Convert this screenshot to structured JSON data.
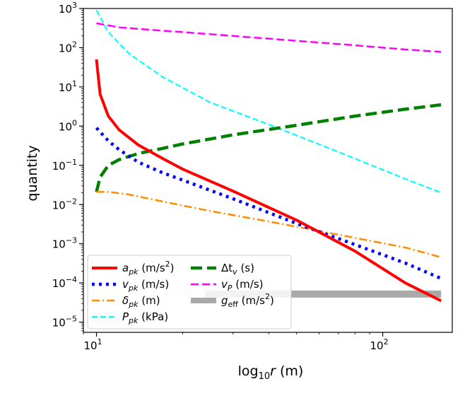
{
  "chart_data": {
    "type": "line",
    "title": "",
    "xlabel": "log10r (m)",
    "ylabel": "quantity",
    "xscale": "log",
    "yscale": "log",
    "xlim": [
      9.0,
      175
    ],
    "ylim": [
      5.5e-06,
      1000
    ],
    "grid": false,
    "legend_position": "lower-left",
    "x_ticks": [
      {
        "value": 10,
        "base": "10",
        "exp": "1"
      },
      {
        "value": 100,
        "base": "10",
        "exp": "2"
      }
    ],
    "y_ticks": [
      {
        "value": 1e-05,
        "base": "10",
        "exp": "−5"
      },
      {
        "value": 0.0001,
        "base": "10",
        "exp": "−4"
      },
      {
        "value": 0.001,
        "base": "10",
        "exp": "−3"
      },
      {
        "value": 0.01,
        "base": "10",
        "exp": "−2"
      },
      {
        "value": 0.1,
        "base": "10",
        "exp": "−1"
      },
      {
        "value": 1,
        "base": "10",
        "exp": "0"
      },
      {
        "value": 10,
        "base": "10",
        "exp": "1"
      },
      {
        "value": 100,
        "base": "10",
        "exp": "2"
      },
      {
        "value": 1000,
        "base": "10",
        "exp": "3"
      }
    ],
    "series": [
      {
        "id": "apk",
        "name": "a_pk (m/s²)",
        "color": "#ff0000",
        "style": "solid",
        "x": [
          10,
          10.3,
          11,
          12,
          14,
          17,
          20,
          30,
          50,
          80,
          120,
          160
        ],
        "y": [
          50,
          6.5,
          1.8,
          0.8,
          0.33,
          0.15,
          0.08,
          0.022,
          0.004,
          0.00065,
          0.0001,
          3.5e-05
        ]
      },
      {
        "id": "vpk",
        "name": "v_pk (m/s)",
        "color": "#0000ff",
        "style": "dotted",
        "x": [
          10,
          11,
          12,
          14,
          17,
          20,
          30,
          50,
          80,
          120,
          160
        ],
        "y": [
          0.9,
          0.42,
          0.25,
          0.12,
          0.065,
          0.042,
          0.014,
          0.0033,
          0.00095,
          0.00032,
          0.00013
        ]
      },
      {
        "id": "dpk",
        "name": "δ_pk (m)",
        "color": "#ff8c00",
        "style": "dashdot",
        "x": [
          10,
          11,
          13,
          17,
          25,
          40,
          70,
          120,
          160
        ],
        "y": [
          0.021,
          0.021,
          0.018,
          0.012,
          0.0068,
          0.0037,
          0.0017,
          0.0008,
          0.00045
        ]
      },
      {
        "id": "Ppk",
        "name": "P_pk (kPa)",
        "color": "#00ffff",
        "style": "dashed",
        "x": [
          10,
          11,
          13,
          17,
          25,
          40,
          70,
          120,
          160
        ],
        "y": [
          900,
          250,
          70,
          18,
          4,
          1.1,
          0.22,
          0.045,
          0.02
        ]
      },
      {
        "id": "dtv",
        "name": "Δt_v (s)",
        "color": "#008000",
        "style": "dashed",
        "x": [
          10,
          10.3,
          11,
          12,
          14,
          17,
          20,
          30,
          50,
          80,
          120,
          160
        ],
        "y": [
          0.021,
          0.05,
          0.1,
          0.14,
          0.2,
          0.27,
          0.35,
          0.6,
          1.05,
          1.8,
          2.7,
          3.5
        ]
      },
      {
        "id": "vP",
        "name": "v_P (m/s)",
        "color": "#ff00ff",
        "style": "dashed",
        "x": [
          10,
          12,
          15,
          20,
          30,
          50,
          80,
          120,
          160
        ],
        "y": [
          420,
          330,
          290,
          250,
          200,
          150,
          115,
          90,
          78
        ]
      },
      {
        "id": "geff",
        "name": "g_eff (m/s²)",
        "color": "#a9a9a9",
        "style": "thick",
        "x": [
          24,
          160
        ],
        "y": [
          5.2e-05,
          5.2e-05
        ]
      }
    ],
    "legend": [
      {
        "series": "apk",
        "sym": "a",
        "sub": "pk",
        "unit": "(m/s",
        "sup": "2",
        "tail": ")"
      },
      {
        "series": "dtv",
        "sym": "Δt",
        "sub": "v",
        "unit": "(s)",
        "sup": "",
        "tail": ""
      },
      {
        "series": "vpk",
        "sym": "v",
        "sub": "pk",
        "unit": "(m/s)",
        "sup": "",
        "tail": ""
      },
      {
        "series": "vP",
        "sym": "v",
        "sub": "P",
        "unit": "(m/s)",
        "sup": "",
        "tail": ""
      },
      {
        "series": "dpk",
        "sym": "δ",
        "sub": "pk",
        "unit": "(m)",
        "sup": "",
        "tail": ""
      },
      {
        "series": "geff",
        "sym": "g",
        "sub": "eff",
        "unit": "(m/s",
        "sup": "2",
        "tail": ")"
      },
      {
        "series": "Ppk",
        "sym": "P",
        "sub": "pk",
        "unit": "(kPa)",
        "sup": "",
        "tail": ""
      }
    ]
  }
}
